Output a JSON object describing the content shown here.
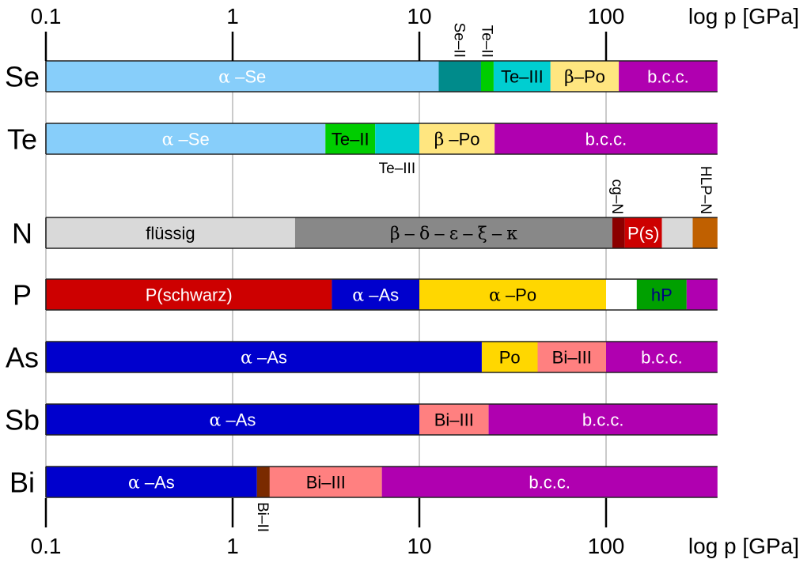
{
  "chart_data": {
    "type": "bar",
    "subtype": "horizontal-stacked-range",
    "title": "",
    "xlabel": "log p [GPa]",
    "xscale": "log",
    "xlim": [
      0.1,
      395
    ],
    "xticks": [
      {
        "value": 0.1,
        "label": "0.1"
      },
      {
        "value": 1,
        "label": "1"
      },
      {
        "value": 10,
        "label": "10"
      },
      {
        "value": 100,
        "label": "100"
      }
    ],
    "grid": "vertical at decades",
    "axis_positions": "top and bottom",
    "categories": [
      "Se",
      "Te",
      "N",
      "P",
      "As",
      "Sb",
      "Bi"
    ],
    "series": [
      {
        "name": "Se",
        "segments": [
          {
            "from": 0.1,
            "to": 12.7,
            "label": "α –Se",
            "color": "#87cefa",
            "text_color": "#ffffff"
          },
          {
            "from": 12.7,
            "to": 21.4,
            "label": "",
            "color": "#008b8b",
            "text_color": "#000000"
          },
          {
            "from": 21.4,
            "to": 25,
            "label": "",
            "color": "#00cd00",
            "text_color": "#000000"
          },
          {
            "from": 25,
            "to": 50.4,
            "label": "Te–III",
            "color": "#00ced1",
            "text_color": "#000000"
          },
          {
            "from": 50.4,
            "to": 117,
            "label": "β–Po",
            "color": "#ffe680",
            "text_color": "#000000"
          },
          {
            "from": 117,
            "to": 395,
            "label": "b.c.c.",
            "color": "#b000b0",
            "text_color": "#ffffff"
          }
        ]
      },
      {
        "name": "Te",
        "segments": [
          {
            "from": 0.1,
            "to": 3.14,
            "label": "α –Se",
            "color": "#87cefa",
            "text_color": "#ffffff"
          },
          {
            "from": 3.14,
            "to": 5.8,
            "label": "Te–II",
            "color": "#00cd00",
            "text_color": "#000000"
          },
          {
            "from": 5.8,
            "to": 10,
            "label": "",
            "color": "#00ced1",
            "text_color": "#000000"
          },
          {
            "from": 10,
            "to": 25.3,
            "label": "β –Po",
            "color": "#ffe680",
            "text_color": "#000000"
          },
          {
            "from": 25.3,
            "to": 395,
            "label": "b.c.c.",
            "color": "#b000b0",
            "text_color": "#ffffff"
          }
        ]
      },
      {
        "name": "N",
        "segments": [
          {
            "from": 0.1,
            "to": 2.16,
            "label": "flüssig",
            "color": "#d9d9d9",
            "text_color": "#000000"
          },
          {
            "from": 2.16,
            "to": 108,
            "label": "β – δ – ε – ξ – κ",
            "color": "#888888",
            "text_color": "#000000"
          },
          {
            "from": 108,
            "to": 126,
            "label": "",
            "color": "#8b0000",
            "text_color": "#ffffff"
          },
          {
            "from": 126,
            "to": 199,
            "label": "P(s)",
            "color": "#cd0000",
            "text_color": "#ffffff"
          },
          {
            "from": 199,
            "to": 291,
            "label": "",
            "color": "#d9d9d9",
            "text_color": "#000000"
          },
          {
            "from": 291,
            "to": 395,
            "label": "",
            "color": "#c06000",
            "text_color": "#000000"
          }
        ]
      },
      {
        "name": "P",
        "segments": [
          {
            "from": 0.1,
            "to": 3.4,
            "label": "P(schwarz)",
            "color": "#cd0000",
            "text_color": "#ffffff"
          },
          {
            "from": 3.4,
            "to": 10,
            "label": "α –As",
            "color": "#0000cd",
            "text_color": "#ffffff"
          },
          {
            "from": 10,
            "to": 100,
            "label": "α –Po",
            "color": "#ffd700",
            "text_color": "#000000"
          },
          {
            "from": 100,
            "to": 146,
            "label": "",
            "color": "#ffffff",
            "text_color": "#000000"
          },
          {
            "from": 146,
            "to": 270,
            "label": "hP",
            "color": "#00a000",
            "text_color": "#000080"
          },
          {
            "from": 270,
            "to": 395,
            "label": "",
            "color": "#b000b0",
            "text_color": "#ffffff"
          }
        ]
      },
      {
        "name": "As",
        "segments": [
          {
            "from": 0.1,
            "to": 21.6,
            "label": "α  –As",
            "color": "#0000cd",
            "text_color": "#ffffff"
          },
          {
            "from": 21.6,
            "to": 43,
            "label": "Po",
            "color": "#ffd700",
            "text_color": "#000000"
          },
          {
            "from": 43,
            "to": 100,
            "label": "Bi–III",
            "color": "#ff8080",
            "text_color": "#000000"
          },
          {
            "from": 100,
            "to": 395,
            "label": "b.c.c.",
            "color": "#b000b0",
            "text_color": "#ffffff"
          }
        ]
      },
      {
        "name": "Sb",
        "segments": [
          {
            "from": 0.1,
            "to": 10,
            "label": "α –As",
            "color": "#0000cd",
            "text_color": "#ffffff"
          },
          {
            "from": 10,
            "to": 23.5,
            "label": "Bi–III",
            "color": "#ff8080",
            "text_color": "#000000"
          },
          {
            "from": 23.5,
            "to": 395,
            "label": "b.c.c.",
            "color": "#b000b0",
            "text_color": "#ffffff"
          }
        ]
      },
      {
        "name": "Bi",
        "segments": [
          {
            "from": 0.1,
            "to": 1.35,
            "label": "α –As",
            "color": "#0000cd",
            "text_color": "#ffffff"
          },
          {
            "from": 1.35,
            "to": 1.58,
            "label": "",
            "color": "#7a2a00",
            "text_color": "#ffffff"
          },
          {
            "from": 1.58,
            "to": 6.3,
            "label": "Bi–III",
            "color": "#ff8080",
            "text_color": "#000000"
          },
          {
            "from": 6.3,
            "to": 395,
            "label": "b.c.c.",
            "color": "#b000b0",
            "text_color": "#ffffff"
          }
        ]
      }
    ],
    "annotations": [
      {
        "text": "Se–II",
        "at": 16.5,
        "row": "Se",
        "position": "above",
        "rotated": true
      },
      {
        "text": "Te–II",
        "at": 23.2,
        "row": "Se",
        "position": "above",
        "rotated": true
      },
      {
        "text": "Te–III",
        "at": 7.6,
        "row": "Te",
        "position": "below",
        "rotated": false
      },
      {
        "text": "cg–N",
        "at": 116,
        "row": "N",
        "position": "above",
        "rotated": true
      },
      {
        "text": "HLP–N",
        "at": 345,
        "row": "N",
        "position": "above",
        "rotated": true
      },
      {
        "text": "Bi–II",
        "at": 1.46,
        "row": "Bi",
        "position": "below",
        "rotated": true
      }
    ]
  }
}
